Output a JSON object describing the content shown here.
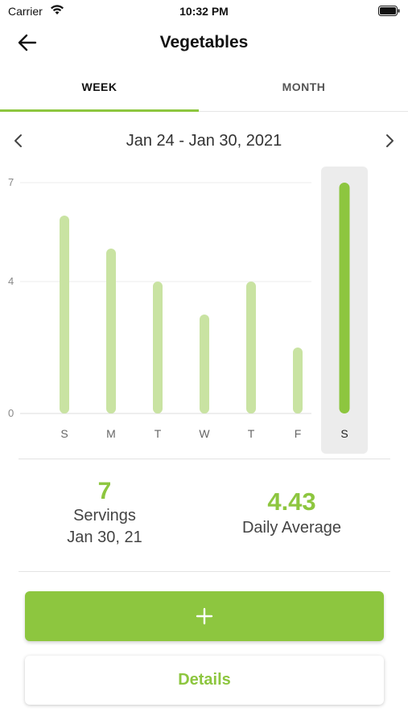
{
  "status_bar": {
    "carrier": "Carrier",
    "time": "10:32 PM"
  },
  "nav": {
    "title": "Vegetables"
  },
  "tabs": [
    {
      "label": "WEEK",
      "active": true
    },
    {
      "label": "MONTH",
      "active": false
    }
  ],
  "range": {
    "label": "Jan 24 - Jan 30, 2021"
  },
  "colors": {
    "accent": "#8dc63f",
    "bar_light": "#c9e3a2",
    "selected_bg": "#ececec"
  },
  "chart_data": {
    "type": "bar",
    "categories": [
      "S",
      "M",
      "T",
      "W",
      "T",
      "F",
      "S"
    ],
    "values": [
      6,
      5,
      4,
      3,
      4,
      2,
      7
    ],
    "y_ticks": [
      "7",
      "4",
      "0"
    ],
    "ylim": [
      0,
      7
    ],
    "selected_index": 6,
    "grid": true
  },
  "stats": {
    "servings_value": "7",
    "servings_label": "Servings",
    "servings_date": "Jan 30, 21",
    "average_value": "4.43",
    "average_label": "Daily Average"
  },
  "buttons": {
    "add_symbol": "+",
    "details_label": "Details"
  }
}
